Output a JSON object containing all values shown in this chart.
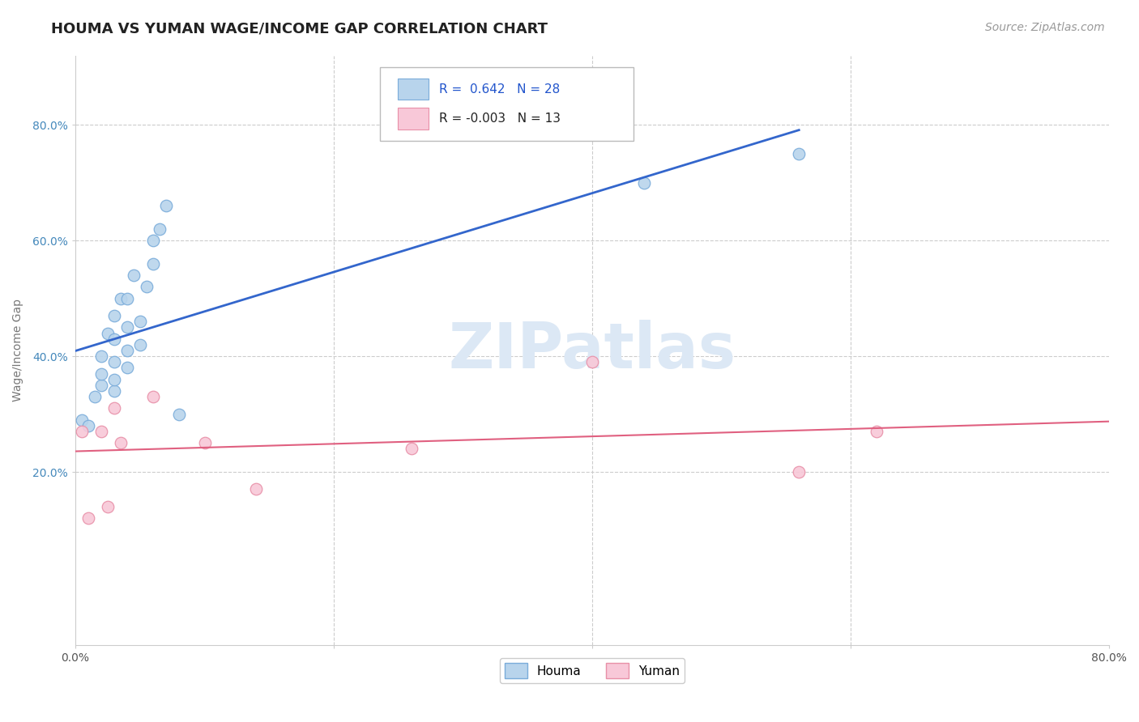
{
  "title": "HOUMA VS YUMAN WAGE/INCOME GAP CORRELATION CHART",
  "source": "Source: ZipAtlas.com",
  "xlabel": "",
  "ylabel": "Wage/Income Gap",
  "xlim": [
    0.0,
    0.8
  ],
  "ylim": [
    -0.1,
    0.92
  ],
  "xticks": [
    0.0,
    0.2,
    0.4,
    0.6,
    0.8
  ],
  "xtick_labels": [
    "0.0%",
    "",
    "",
    "",
    "80.0%"
  ],
  "yticks": [
    0.2,
    0.4,
    0.6,
    0.8
  ],
  "ytick_labels": [
    "20.0%",
    "40.0%",
    "60.0%",
    "80.0%"
  ],
  "background_color": "#ffffff",
  "grid_color": "#cccccc",
  "houma_color": "#b8d4ec",
  "houma_edge_color": "#7aacda",
  "yuman_color": "#f8c8d8",
  "yuman_edge_color": "#e890a8",
  "houma_line_color": "#3366cc",
  "yuman_line_color": "#e06080",
  "watermark_color": "#dce8f5",
  "R_houma": 0.642,
  "N_houma": 28,
  "R_yuman": -0.003,
  "N_yuman": 13,
  "houma_x": [
    0.005,
    0.01,
    0.015,
    0.02,
    0.02,
    0.02,
    0.025,
    0.03,
    0.03,
    0.03,
    0.03,
    0.03,
    0.035,
    0.04,
    0.04,
    0.04,
    0.04,
    0.045,
    0.05,
    0.05,
    0.055,
    0.06,
    0.06,
    0.065,
    0.07,
    0.08,
    0.44,
    0.56
  ],
  "houma_y": [
    0.29,
    0.28,
    0.33,
    0.35,
    0.37,
    0.4,
    0.44,
    0.34,
    0.36,
    0.39,
    0.43,
    0.47,
    0.5,
    0.38,
    0.41,
    0.45,
    0.5,
    0.54,
    0.42,
    0.46,
    0.52,
    0.56,
    0.6,
    0.62,
    0.66,
    0.3,
    0.7,
    0.75
  ],
  "yuman_x": [
    0.005,
    0.01,
    0.02,
    0.025,
    0.03,
    0.035,
    0.06,
    0.1,
    0.14,
    0.26,
    0.4,
    0.56,
    0.62
  ],
  "yuman_y": [
    0.27,
    0.12,
    0.27,
    0.14,
    0.31,
    0.25,
    0.33,
    0.25,
    0.17,
    0.24,
    0.39,
    0.2,
    0.27
  ],
  "title_fontsize": 13,
  "axis_label_fontsize": 10,
  "tick_fontsize": 10,
  "legend_fontsize": 11,
  "source_fontsize": 10,
  "marker_size": 110
}
